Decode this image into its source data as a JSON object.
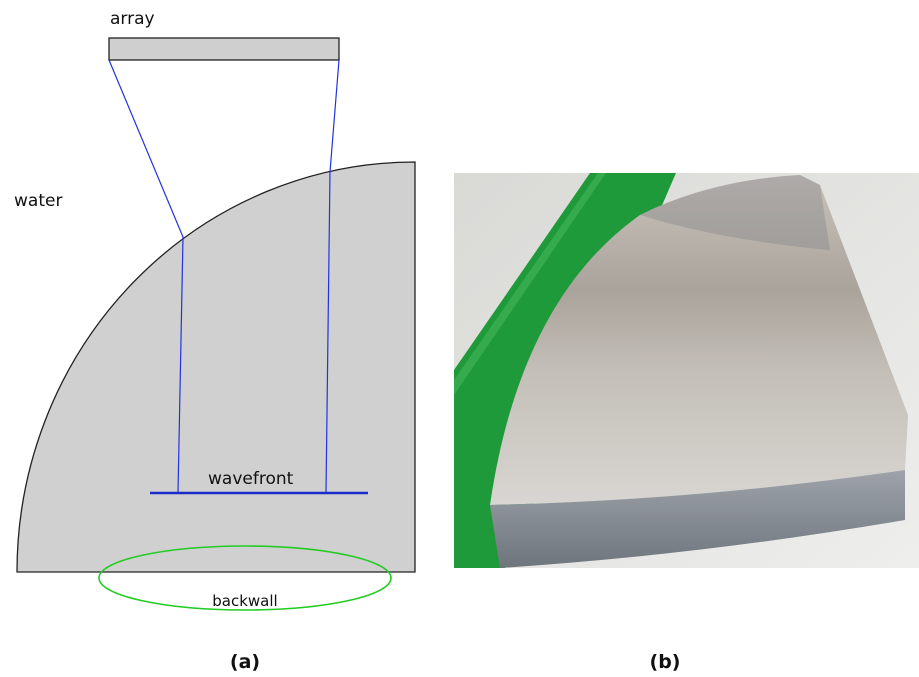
{
  "diagram": {
    "array": "array",
    "water": "water",
    "wavefront": "wavefront",
    "backwall": "backwall"
  },
  "captions": {
    "a": "(a)",
    "b": "(b)"
  }
}
